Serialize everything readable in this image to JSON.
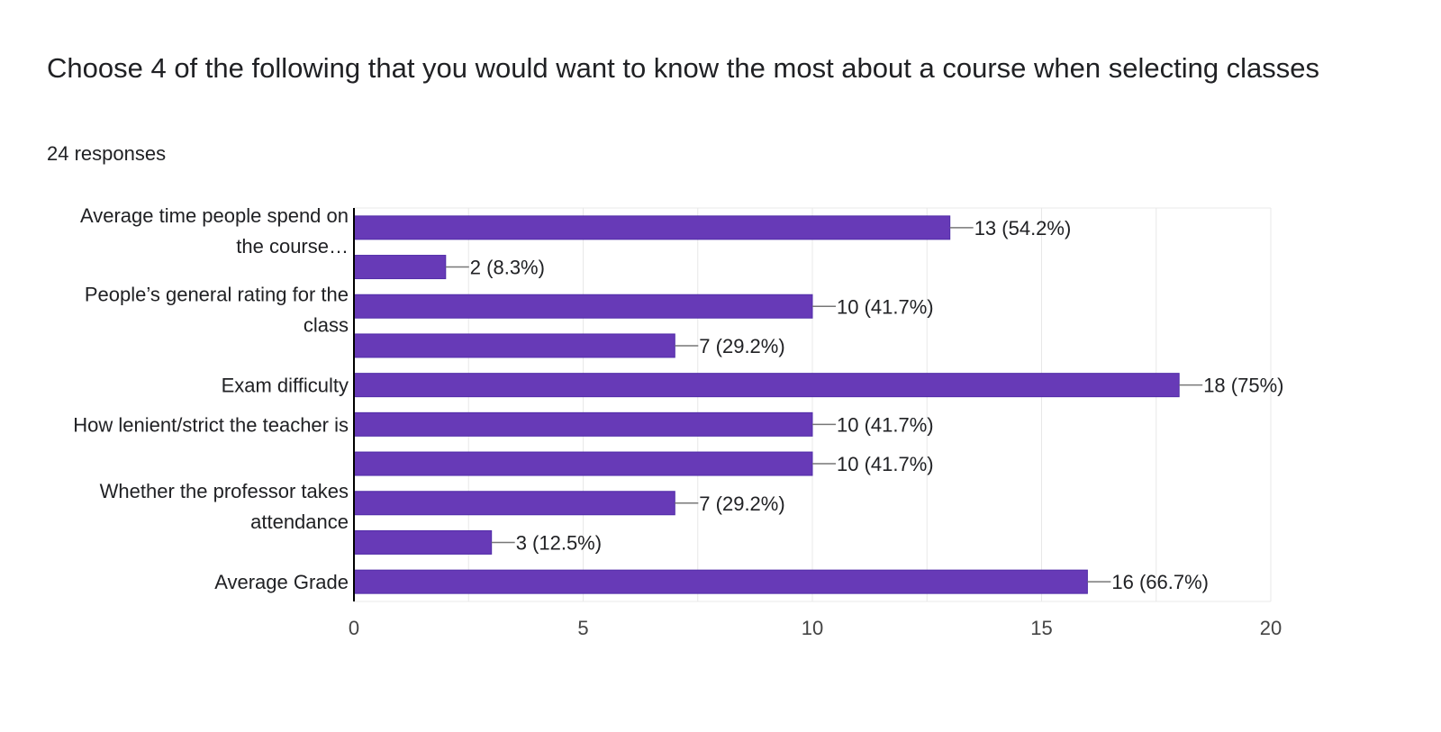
{
  "question": {
    "title": "Choose 4 of the following that you would want to know the most about a course when selecting classes",
    "responses": "24 responses"
  },
  "colors": {
    "bar": "#673ab7",
    "bar_border": "#512da8",
    "grid": "#e8e8e8",
    "axis": "#000000",
    "leader": "#777777"
  },
  "chart_data": {
    "type": "bar",
    "orientation": "horizontal",
    "categories": [
      [
        "Average time people spend on",
        "the course…"
      ],
      [],
      [
        "People’s general rating for the",
        "class"
      ],
      [],
      [
        "Exam difficulty"
      ],
      [
        "How lenient/strict the teacher is"
      ],
      [],
      [
        "Whether the professor takes",
        "attendance"
      ],
      [],
      [
        "Average Grade"
      ]
    ],
    "values": [
      13,
      2,
      10,
      7,
      18,
      10,
      10,
      7,
      3,
      16
    ],
    "data_labels": [
      "13 (54.2%)",
      "2 (8.3%)",
      "10 (41.7%)",
      "7 (29.2%)",
      "18 (75%)",
      "10 (41.7%)",
      "10 (41.7%)",
      "7 (29.2%)",
      "3 (12.5%)",
      "16 (66.7%)"
    ],
    "x_ticks": [
      "0",
      "5",
      "10",
      "15",
      "20"
    ],
    "xlim": [
      0,
      20
    ],
    "grid": true,
    "legend": "none"
  }
}
